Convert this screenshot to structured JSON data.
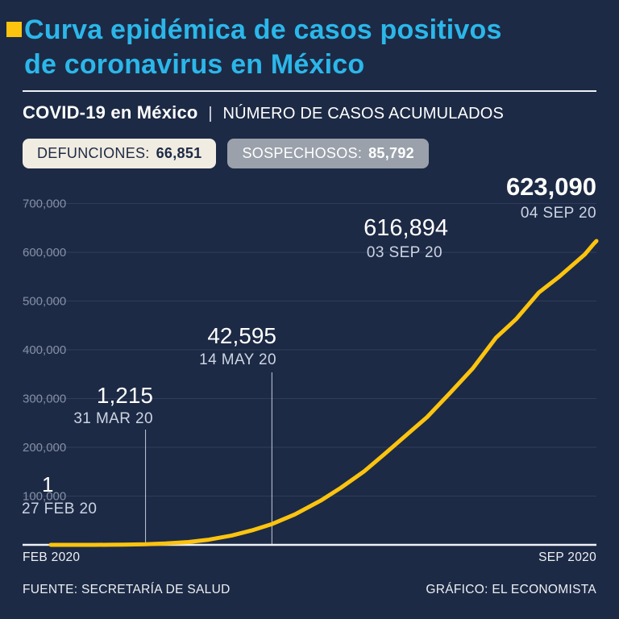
{
  "colors": {
    "background": "#1d2a45",
    "accent_yellow": "#fdc40f",
    "title_cyan": "#2bb7ea",
    "curve_yellow": "#fdc40f",
    "badge_defunciones_bg": "#f1ece1",
    "badge_sospechosos_bg": "#9aa1ab"
  },
  "header": {
    "title_line1": "Curva epidémica de casos positivos",
    "title_line2": "de coronavirus en México",
    "subtitle_bold": "COVID-19 en México",
    "subtitle_separator": "|",
    "subtitle_rest": "NÚMERO DE CASOS ACUMULADOS"
  },
  "badges": [
    {
      "label": "DEFUNCIONES:",
      "value": "66,851"
    },
    {
      "label": "SOSPECHOSOS:",
      "value": "85,792"
    }
  ],
  "chart_data": {
    "type": "line",
    "title": "COVID-19 en México | Número de casos acumulados",
    "xlabel": "",
    "ylabel": "",
    "x_axis": {
      "start_label": "FEB 2020",
      "end_label": "SEP 2020"
    },
    "y_ticks": [
      "700,000",
      "600,000",
      "500,000",
      "400,000",
      "300,000",
      "200,000",
      "100,000"
    ],
    "y_tick_values": [
      700000,
      600000,
      500000,
      400000,
      300000,
      200000,
      100000
    ],
    "ylim": [
      0,
      730000
    ],
    "grid": true,
    "legend": false,
    "series": [
      {
        "name": "Casos positivos acumulados",
        "color": "#fdc40f",
        "points": [
          [
            0,
            1
          ],
          [
            5,
            5
          ],
          [
            10,
            7
          ],
          [
            15,
            41
          ],
          [
            20,
            118
          ],
          [
            25,
            405
          ],
          [
            33,
            1215
          ],
          [
            40,
            2785
          ],
          [
            48,
            5847
          ],
          [
            55,
            10544
          ],
          [
            63,
            19224
          ],
          [
            70,
            29616
          ],
          [
            77,
            42595
          ],
          [
            85,
            62527
          ],
          [
            94,
            90664
          ],
          [
            101,
            117103
          ],
          [
            109,
            150264
          ],
          [
            116,
            185122
          ],
          [
            124,
            226089
          ],
          [
            131,
            261750
          ],
          [
            139,
            311486
          ],
          [
            147,
            362274
          ],
          [
            155,
            424637
          ],
          [
            162,
            462690
          ],
          [
            170,
            517714
          ],
          [
            177,
            549734
          ],
          [
            186,
            595841
          ],
          [
            189,
            616894
          ],
          [
            190,
            623090
          ]
        ]
      }
    ],
    "annotations": [
      {
        "value": "1",
        "date": "27 FEB 20",
        "day": 0,
        "numeric": 1
      },
      {
        "value": "1,215",
        "date": "31 MAR 20",
        "day": 33,
        "numeric": 1215
      },
      {
        "value": "42,595",
        "date": "14 MAY 20",
        "day": 77,
        "numeric": 42595
      },
      {
        "value": "616,894",
        "date": "03 SEP 20",
        "day": 189,
        "numeric": 616894
      },
      {
        "value": "623,090",
        "date": "04 SEP 20",
        "day": 190,
        "numeric": 623090
      }
    ]
  },
  "footer": {
    "source": "FUENTE: SECRETARÍA DE SALUD",
    "credit": "GRÁFICO: EL ECONOMISTA"
  }
}
